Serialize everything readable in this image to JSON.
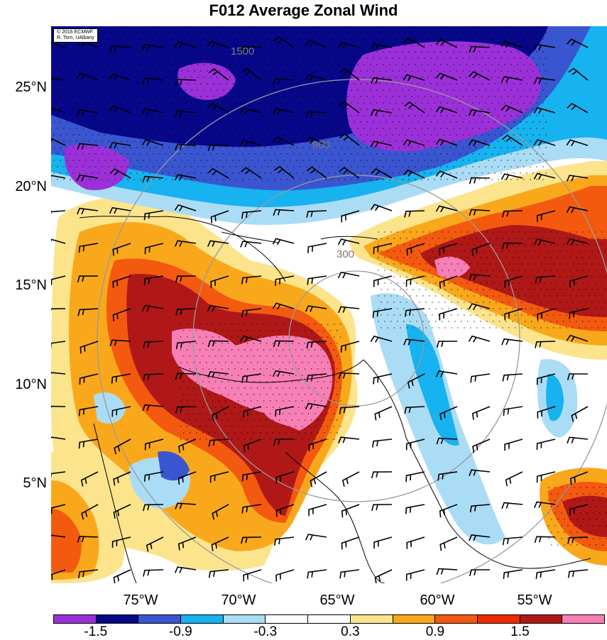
{
  "title": "F012 Average Zonal Wind",
  "credit": {
    "line1": "© 2016 ECMWF",
    "line2": "R. Torn, UAlbany"
  },
  "lat_ticks": [
    {
      "value": 25,
      "label": "25°N"
    },
    {
      "value": 20,
      "label": "20°N"
    },
    {
      "value": 15,
      "label": "15°N"
    },
    {
      "value": 10,
      "label": "10°N"
    },
    {
      "value": 5,
      "label": "5°N"
    }
  ],
  "lon_ticks": [
    {
      "value": -75,
      "label": "75°W"
    },
    {
      "value": -70,
      "label": "70°W"
    },
    {
      "value": -65,
      "label": "65°W"
    },
    {
      "value": -60,
      "label": "60°W"
    },
    {
      "value": -55,
      "label": "55°W"
    }
  ],
  "range_ring_labels": [
    "300",
    "900",
    "1500"
  ],
  "colorbar": {
    "colors": [
      "#9b30d9",
      "#07078a",
      "#3a55d0",
      "#17b2f0",
      "#abdcf5",
      "#ffffff",
      "#ffffff",
      "#fbe48c",
      "#f9a81c",
      "#f35a10",
      "#ef2a00",
      "#b01818",
      "#f77fb6"
    ],
    "labels": [
      {
        "index": 1,
        "text": "-1.5"
      },
      {
        "index": 3,
        "text": "-0.9"
      },
      {
        "index": 5,
        "text": "-0.3"
      },
      {
        "index": 7,
        "text": "0.3"
      },
      {
        "index": 9,
        "text": "0.9"
      },
      {
        "index": 11,
        "text": "1.5"
      }
    ]
  },
  "map_colors": {
    "water_bg": "#ffffff",
    "coast": "#000000",
    "ring": "#9a9a9a",
    "barb": "#000000"
  }
}
